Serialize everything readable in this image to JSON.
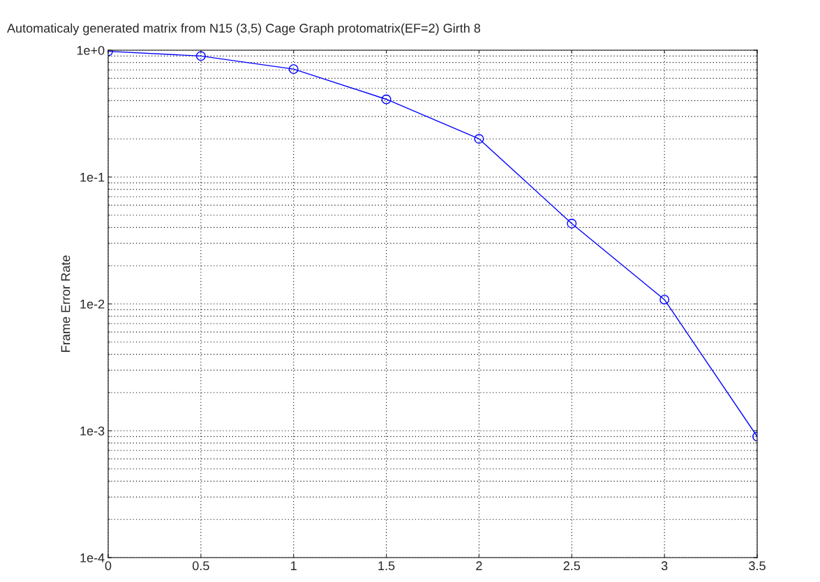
{
  "chart_data": {
    "type": "line",
    "title": "Automaticaly generated matrix from N15 (3,5) Cage Graph protomatrix(EF=2) Girth 8",
    "ylabel": "Frame Error Rate",
    "x": [
      0,
      0.5,
      1,
      1.5,
      2,
      2.5,
      3,
      3.5
    ],
    "series": [
      {
        "color": "#0000ff",
        "values": [
          0.98,
          0.9,
          0.71,
          0.41,
          0.2,
          0.043,
          0.0108,
          0.0009
        ]
      }
    ],
    "log": "y",
    "xlim": [
      0,
      3.5
    ],
    "ylim": [
      0.0001,
      1
    ],
    "xticks": [
      0,
      0.5,
      1,
      1.5,
      2,
      2.5,
      3,
      3.5
    ],
    "yticks": [
      {
        "value": 0.0001,
        "label": "1e-4"
      },
      {
        "value": 0.001,
        "label": "1e-3"
      },
      {
        "value": 0.01,
        "label": "1e-2"
      },
      {
        "value": 0.1,
        "label": "1e-1"
      },
      {
        "value": 1,
        "label": "1e+0"
      }
    ],
    "grid": true,
    "marker": "circle",
    "line_style": "solid"
  }
}
